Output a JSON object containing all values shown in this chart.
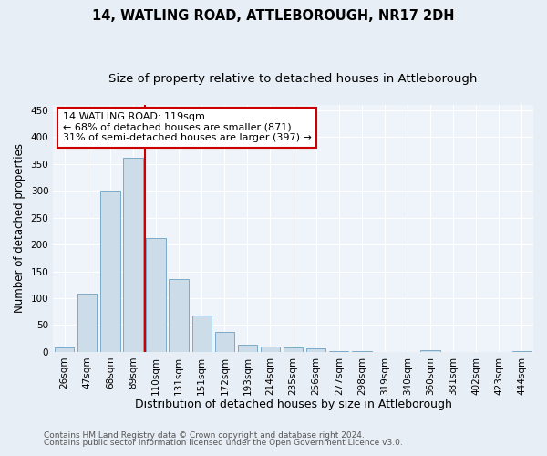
{
  "title": "14, WATLING ROAD, ATTLEBOROUGH, NR17 2DH",
  "subtitle": "Size of property relative to detached houses in Attleborough",
  "xlabel": "Distribution of detached houses by size in Attleborough",
  "ylabel": "Number of detached properties",
  "bar_color": "#ccdce8",
  "bar_edgecolor": "#7aaac8",
  "categories": [
    "26sqm",
    "47sqm",
    "68sqm",
    "89sqm",
    "110sqm",
    "131sqm",
    "151sqm",
    "172sqm",
    "193sqm",
    "214sqm",
    "235sqm",
    "256sqm",
    "277sqm",
    "298sqm",
    "319sqm",
    "340sqm",
    "360sqm",
    "381sqm",
    "402sqm",
    "423sqm",
    "444sqm"
  ],
  "values": [
    8,
    108,
    301,
    362,
    212,
    136,
    68,
    37,
    13,
    10,
    9,
    6,
    2,
    1,
    0,
    0,
    3,
    0,
    0,
    0,
    2
  ],
  "vline_index": 4,
  "vline_color": "#cc0000",
  "annotation_line1": "14 WATLING ROAD: 119sqm",
  "annotation_line2": "← 68% of detached houses are smaller (871)",
  "annotation_line3": "31% of semi-detached houses are larger (397) →",
  "annotation_box_color": "white",
  "annotation_box_edgecolor": "#cc0000",
  "ylim": [
    0,
    460
  ],
  "yticks": [
    0,
    50,
    100,
    150,
    200,
    250,
    300,
    350,
    400,
    450
  ],
  "footnote1": "Contains HM Land Registry data © Crown copyright and database right 2024.",
  "footnote2": "Contains public sector information licensed under the Open Government Licence v3.0.",
  "bg_color": "#e8eef5",
  "plot_bg_color": "#eef4fa",
  "grid_color": "#ffffff",
  "title_fontsize": 10.5,
  "subtitle_fontsize": 9.5,
  "xlabel_fontsize": 9,
  "ylabel_fontsize": 8.5,
  "tick_fontsize": 7.5,
  "annot_fontsize": 8,
  "footnote_fontsize": 6.5
}
